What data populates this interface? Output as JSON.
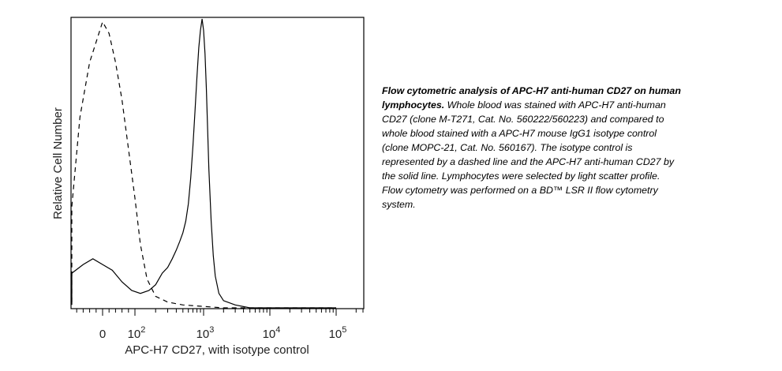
{
  "chart_data": {
    "type": "line",
    "title": "",
    "xlabel": "APC-H7 CD27, with isotype control",
    "ylabel": "Relative Cell Number",
    "x_scale": "biexponential",
    "x_ticks": [
      {
        "base": "0",
        "exp": ""
      },
      {
        "base": "10",
        "exp": "2"
      },
      {
        "base": "10",
        "exp": "3"
      },
      {
        "base": "10",
        "exp": "4"
      },
      {
        "base": "10",
        "exp": "5"
      }
    ],
    "x_tick_values": [
      0,
      100,
      1000,
      10000,
      100000
    ],
    "grid": false,
    "legend": "none",
    "series": [
      {
        "style": "dashed",
        "x": [
          -200,
          -150,
          -100,
          -70,
          -40,
          -20,
          0,
          20,
          40,
          60,
          80,
          100,
          120,
          150,
          200,
          300,
          500,
          1000,
          2000,
          5000,
          100000
        ],
        "y": [
          0.02,
          0.08,
          0.35,
          0.66,
          0.85,
          0.92,
          0.99,
          0.95,
          0.85,
          0.72,
          0.55,
          0.38,
          0.22,
          0.1,
          0.04,
          0.02,
          0.01,
          0.005,
          0.0,
          0.0,
          0.0
        ]
      },
      {
        "style": "solid",
        "x": [
          -200,
          -150,
          -100,
          -60,
          -30,
          0,
          30,
          60,
          90,
          120,
          160,
          200,
          250,
          300,
          350,
          400,
          450,
          500,
          550,
          600,
          650,
          700,
          750,
          800,
          850,
          900,
          950,
          1000,
          1050,
          1100,
          1150,
          1200,
          1300,
          1400,
          1500,
          1700,
          2000,
          3000,
          5000,
          100000
        ],
        "y": [
          0.01,
          0.06,
          0.12,
          0.15,
          0.17,
          0.15,
          0.13,
          0.09,
          0.06,
          0.05,
          0.06,
          0.08,
          0.12,
          0.14,
          0.17,
          0.2,
          0.23,
          0.26,
          0.3,
          0.36,
          0.45,
          0.56,
          0.68,
          0.8,
          0.9,
          0.96,
          1.0,
          0.96,
          0.88,
          0.76,
          0.62,
          0.48,
          0.3,
          0.18,
          0.11,
          0.05,
          0.025,
          0.01,
          0.0,
          0.0
        ]
      }
    ]
  },
  "caption": {
    "bold": "Flow cytometric analysis of APC-H7 anti-human CD27 on human lymphocytes.",
    "body": " Whole blood was stained with APC-H7 anti-human CD27 (clone M-T271, Cat. No. 560222/560223) and compared to whole blood stained with a APC-H7 mouse IgG1 isotype control (clone MOPC-21, Cat. No. 560167).  The isotype control is represented by a dashed line and the APC-H7 anti-human CD27 by the solid line.  Lymphocytes were selected by light scatter profile. Flow cytometry was performed on a BD™ LSR II flow cytometry system."
  }
}
